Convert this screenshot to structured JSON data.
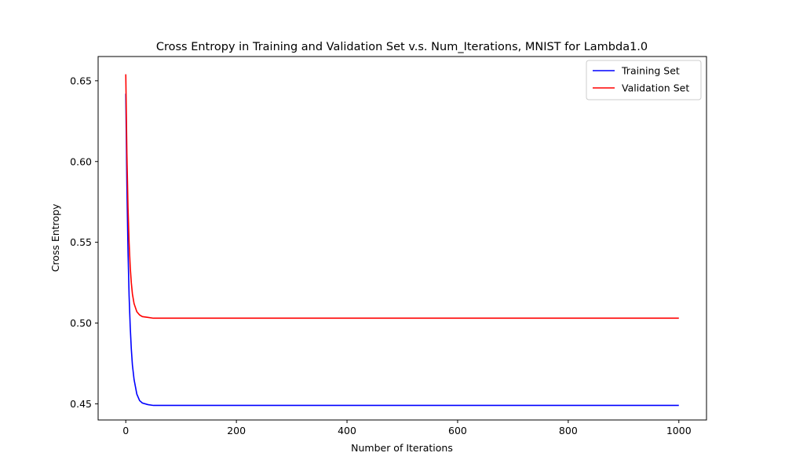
{
  "chart_data": {
    "type": "line",
    "title": "Cross Entropy in Training and Validation Set v.s. Num_Iterations, MNIST for Lambda1.0",
    "xlabel": "Number of Iterations",
    "ylabel": "Cross Entropy",
    "xlim": [
      -50,
      1050
    ],
    "ylim": [
      0.44,
      0.665
    ],
    "xticks": [
      0,
      200,
      400,
      600,
      800,
      1000
    ],
    "xtick_labels": [
      "0",
      "200",
      "400",
      "600",
      "800",
      "1000"
    ],
    "yticks": [
      0.45,
      0.5,
      0.55,
      0.6,
      0.65
    ],
    "ytick_labels": [
      "0.45",
      "0.50",
      "0.55",
      "0.60",
      "0.65"
    ],
    "grid": false,
    "legend_position": "top-right",
    "series": [
      {
        "name": "Training Set",
        "color": "#0000ff",
        "x": [
          0,
          2,
          4,
          6,
          8,
          10,
          12,
          15,
          20,
          25,
          30,
          40,
          50,
          70,
          100,
          200,
          400,
          600,
          800,
          1000
        ],
        "y": [
          0.642,
          0.585,
          0.545,
          0.517,
          0.498,
          0.484,
          0.474,
          0.465,
          0.456,
          0.452,
          0.4505,
          0.4495,
          0.449,
          0.449,
          0.449,
          0.449,
          0.449,
          0.449,
          0.449,
          0.449
        ]
      },
      {
        "name": "Validation Set",
        "color": "#ff0000",
        "x": [
          0,
          2,
          4,
          6,
          8,
          10,
          12,
          15,
          20,
          25,
          30,
          40,
          50,
          70,
          100,
          200,
          400,
          600,
          800,
          1000
        ],
        "y": [
          0.654,
          0.605,
          0.572,
          0.55,
          0.535,
          0.525,
          0.518,
          0.512,
          0.507,
          0.505,
          0.504,
          0.5035,
          0.503,
          0.503,
          0.503,
          0.503,
          0.503,
          0.503,
          0.503,
          0.503
        ]
      }
    ]
  }
}
